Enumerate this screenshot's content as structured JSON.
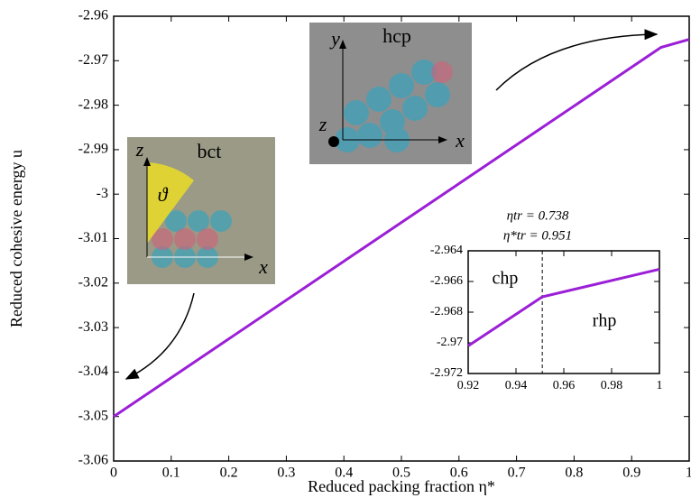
{
  "chart_data": [
    {
      "type": "line",
      "x_label": "Reduced packing fraction η*",
      "y_label": "Reduced cohesive energy u",
      "x": [
        0,
        0.951,
        1
      ],
      "series": [
        {
          "color": "#9b1fd6",
          "values": [
            -3.05,
            -2.967,
            -2.9652
          ]
        }
      ],
      "xlim": [
        0,
        1
      ],
      "xticks": [
        0,
        0.1,
        0.2,
        0.3,
        0.4,
        0.5,
        0.6,
        0.7,
        0.8,
        0.9,
        1
      ],
      "ylim": [
        -3.06,
        -2.96
      ],
      "yticks": [
        -3.06,
        -3.05,
        -3.04,
        -3.03,
        -3.02,
        -3.01,
        -3,
        -2.99,
        -2.98,
        -2.97,
        -2.96
      ],
      "insets": [
        {
          "label": "hcp",
          "axes": [
            "y",
            "z",
            "x"
          ]
        },
        {
          "label": "bct",
          "axes": [
            "z",
            "ϑ",
            "x"
          ]
        }
      ]
    },
    {
      "type": "line",
      "x": [
        0.92,
        0.951,
        1
      ],
      "series": [
        {
          "color": "#9b1fd6",
          "values": [
            -2.9702,
            -2.967,
            -2.9652
          ]
        }
      ],
      "xlim": [
        0.92,
        1
      ],
      "xticks": [
        0.92,
        0.94,
        0.96,
        0.98,
        1
      ],
      "ylim": [
        -2.972,
        -2.964
      ],
      "yticks": [
        -2.972,
        -2.97,
        -2.968,
        -2.966,
        -2.964
      ],
      "vline": 0.951,
      "regions": [
        "chp",
        "rhp"
      ],
      "annotations": [
        "ηtr = 0.738",
        "η*tr = 0.951"
      ]
    }
  ]
}
